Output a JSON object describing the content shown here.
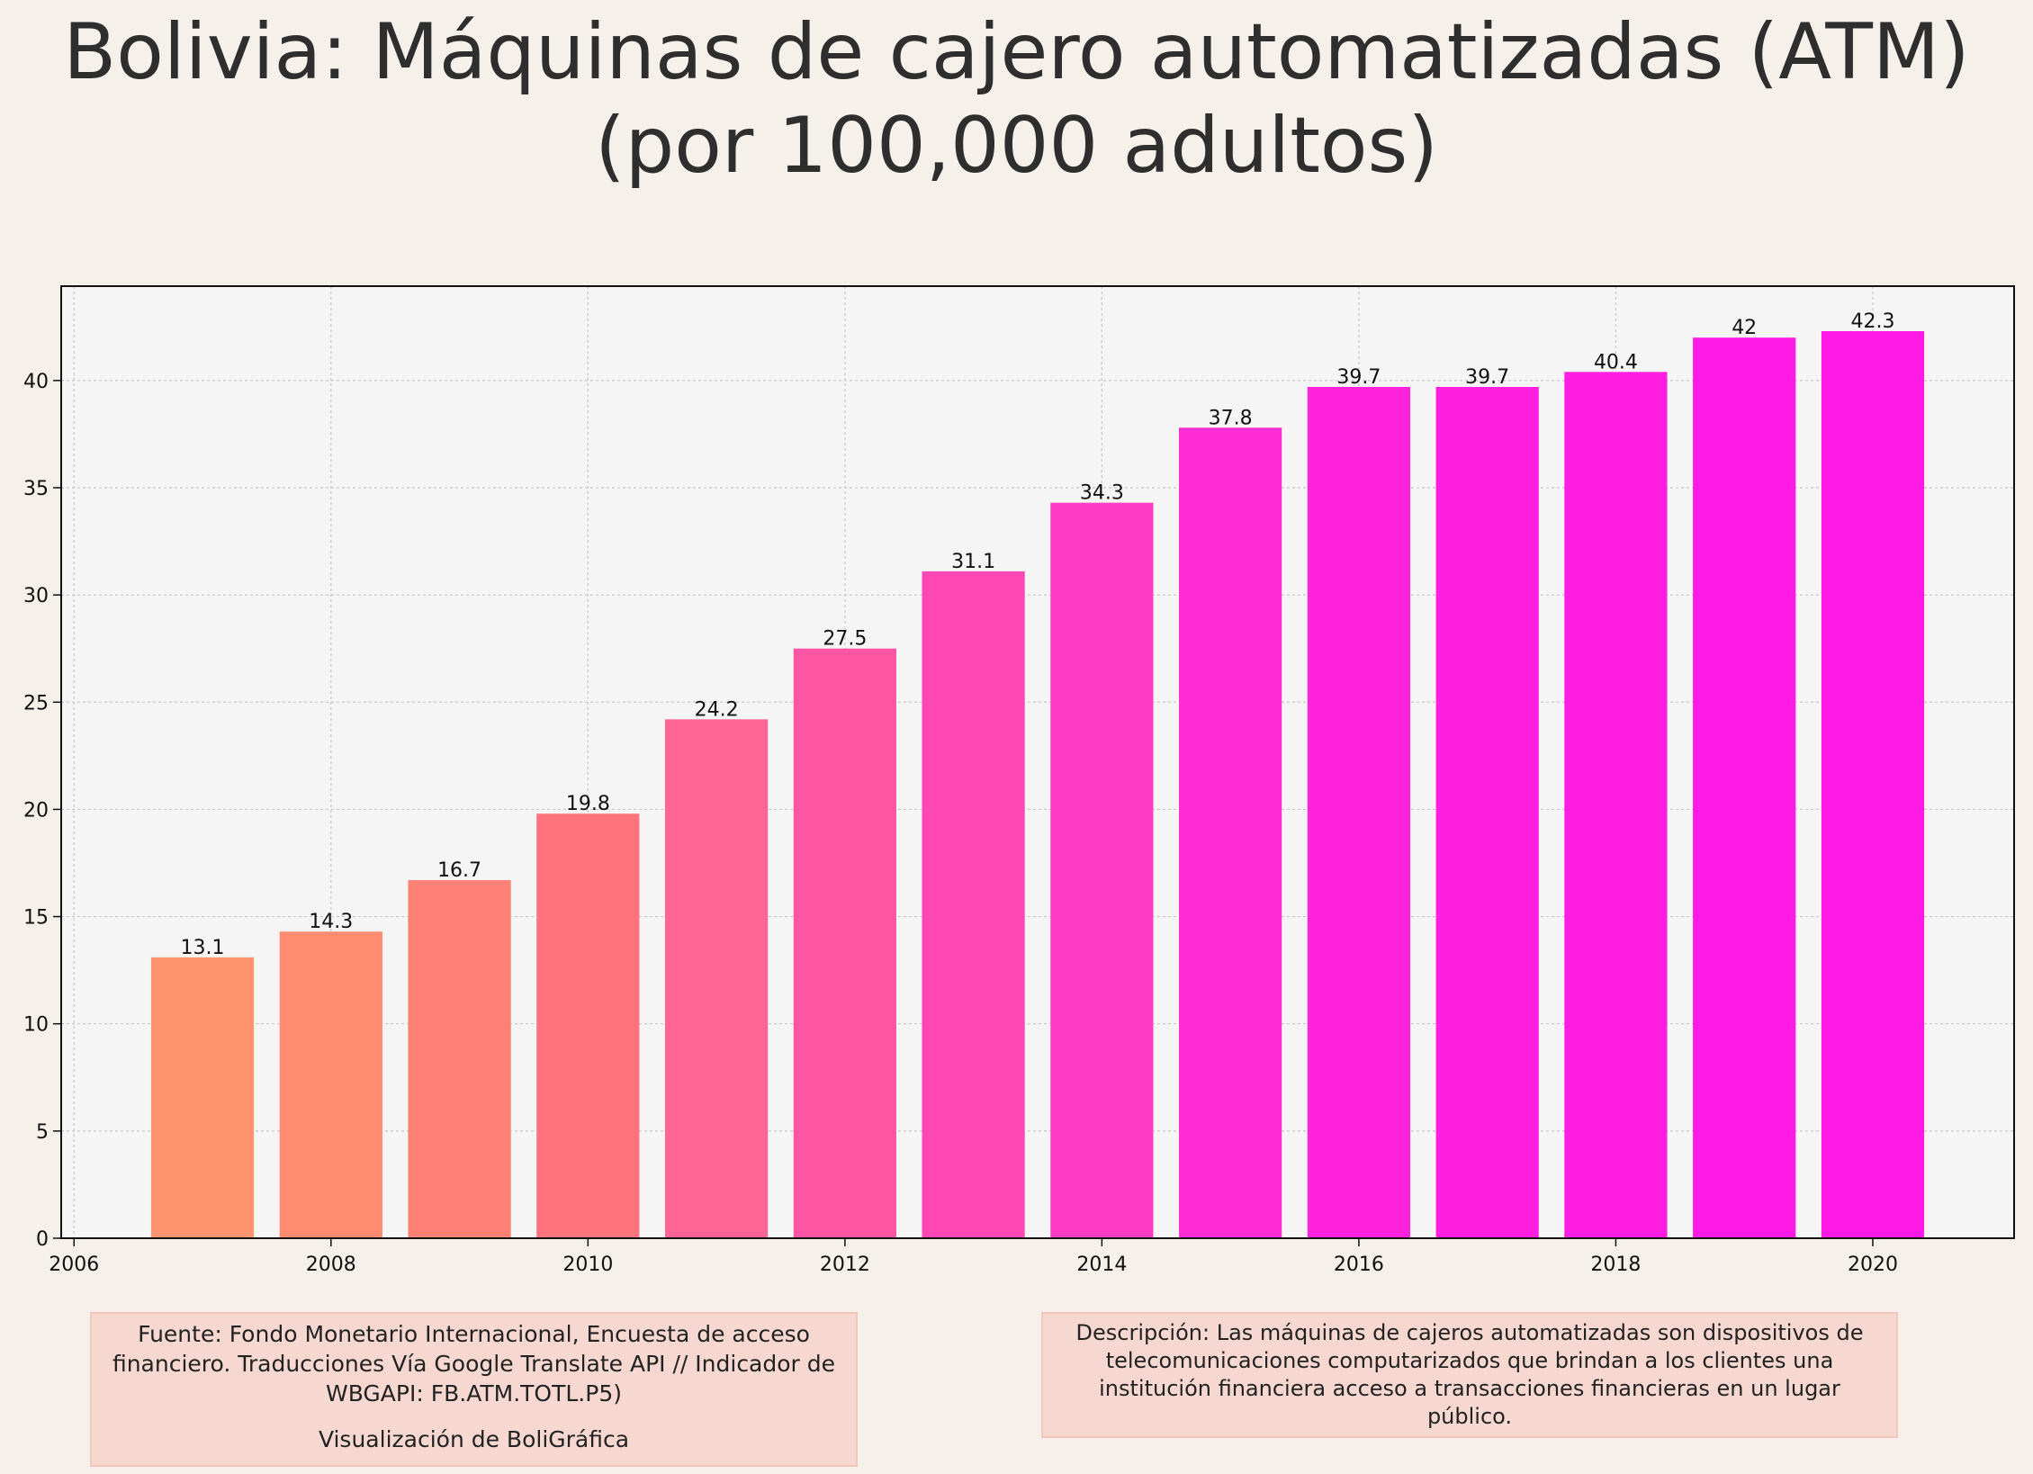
{
  "title": "Bolivia:  Máquinas de cajero automatizadas (ATM)\n(por 100,000 adultos)",
  "chart_data": {
    "type": "bar",
    "title": "Bolivia:  Máquinas de cajero automatizadas (ATM)\n(por 100,000 adultos)",
    "x": [
      2007,
      2008,
      2009,
      2010,
      2011,
      2012,
      2013,
      2014,
      2015,
      2016,
      2017,
      2018,
      2019,
      2020
    ],
    "values": [
      13.1,
      14.3,
      16.7,
      19.8,
      24.2,
      27.5,
      31.1,
      34.3,
      37.8,
      39.7,
      39.7,
      40.4,
      42,
      42.3
    ],
    "value_labels": [
      "13.1",
      "14.3",
      "16.7",
      "19.8",
      "24.2",
      "27.5",
      "31.1",
      "34.3",
      "37.8",
      "39.7",
      "39.7",
      "40.4",
      "42",
      "42.3"
    ],
    "xlabel": "",
    "ylabel": "",
    "xlim": [
      2005.9,
      2021.1
    ],
    "ylim": [
      0,
      44.4
    ],
    "x_ticks": [
      "2006",
      "2008",
      "2010",
      "2012",
      "2014",
      "2016",
      "2018",
      "2020"
    ],
    "y_ticks": [
      "0",
      "5",
      "10",
      "15",
      "20",
      "25",
      "30",
      "35",
      "40"
    ],
    "grid": true,
    "bar_colors": [
      "#ff946e",
      "#ff8b70",
      "#ff8075",
      "#ff737d",
      "#ff6495",
      "#ff55a3",
      "#ff48b4",
      "#ff3dc4",
      "#ff2dd3",
      "#ff22dc",
      "#ff1fde",
      "#ff1ee1",
      "#ff1ae5",
      "#ff1ae6"
    ]
  },
  "colors": {
    "background": "#f5f0ea",
    "plot_background": "#f5f5f5",
    "note_background": "#f6d8d1"
  },
  "source_note": {
    "text": "Fuente: Fondo Monetario Internacional, Encuesta de acceso financiero. Traducciones Vía Google Translate API // Indicador de WBGAPI: FB.ATM.TOTL.P5)",
    "credit": "Visualización de BoliGráfica"
  },
  "description_note": {
    "text": "Descripción: Las máquinas de cajeros automatizadas son dispositivos de telecomunicaciones computarizados que brindan a los clientes una institución financiera acceso a transacciones financieras en un lugar público."
  }
}
